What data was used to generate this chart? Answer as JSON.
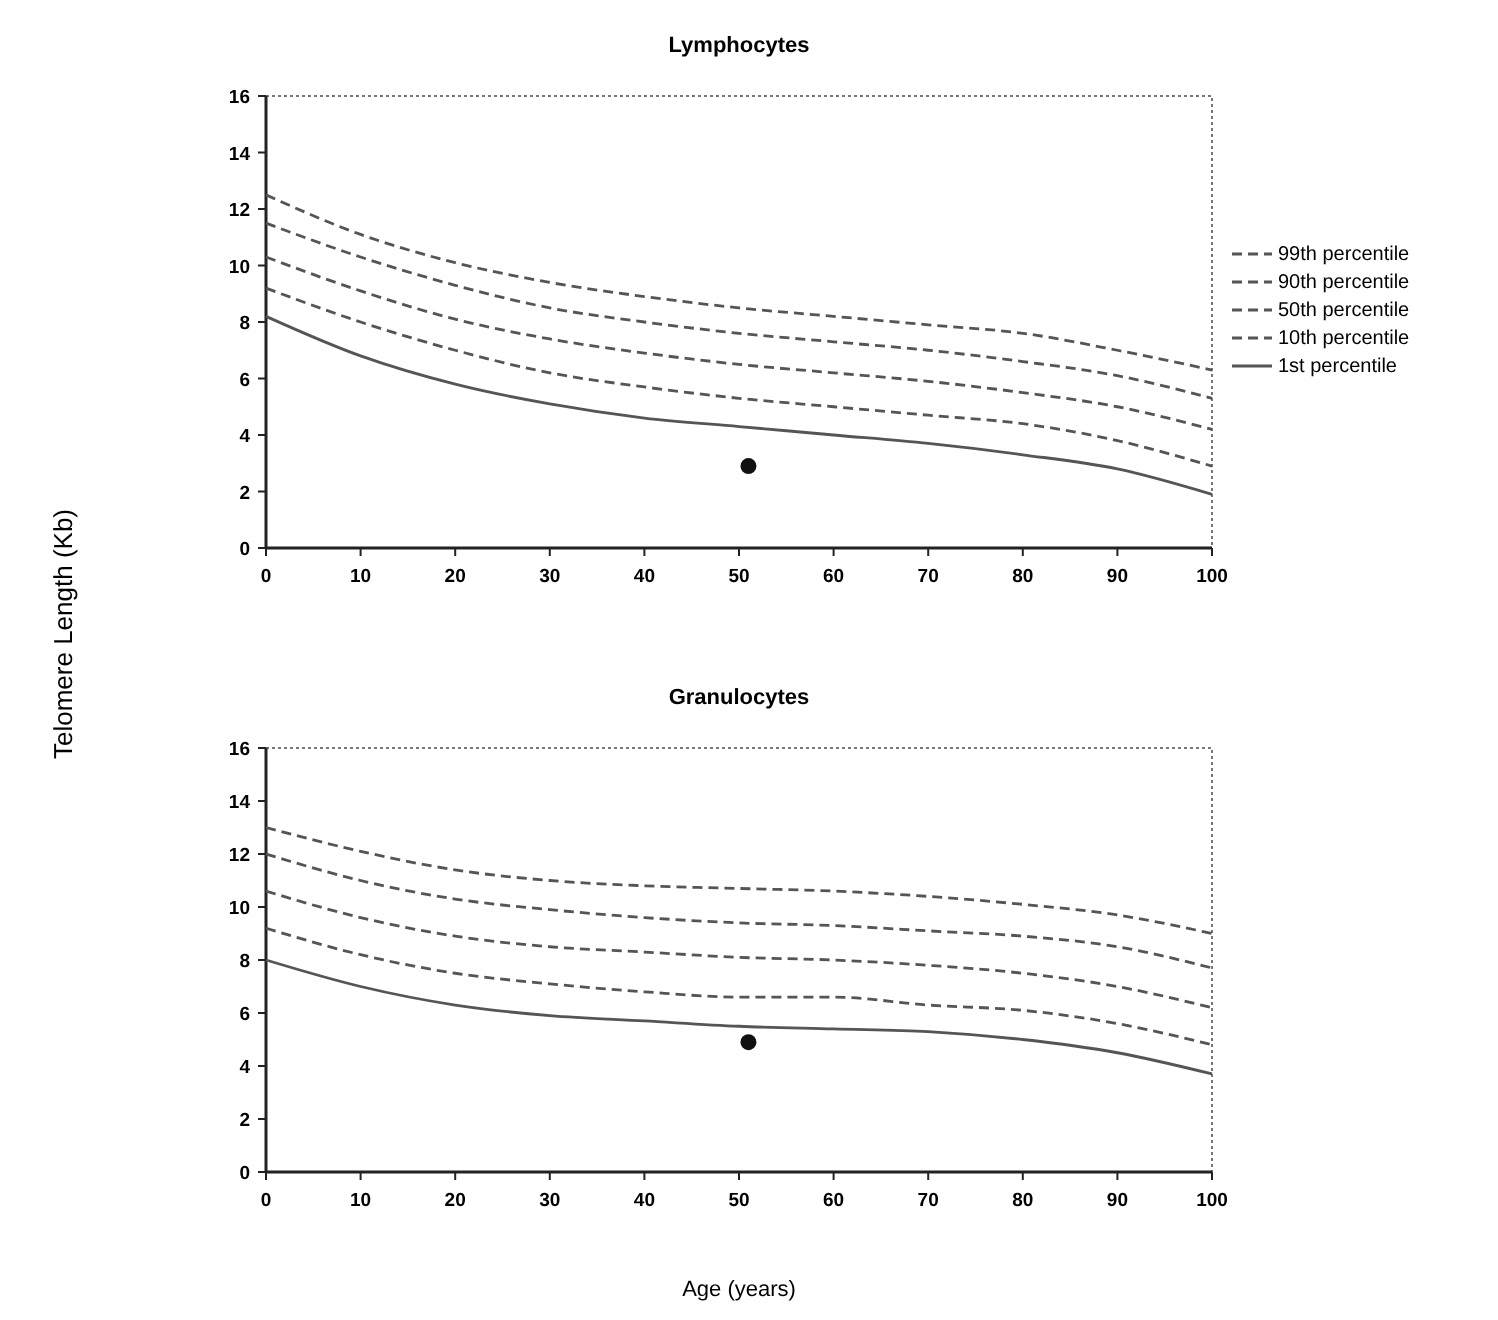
{
  "chart_data": [
    {
      "type": "line",
      "title": "Lymphocytes",
      "ylabel": "Telomere Length (Kb)",
      "x": [
        0,
        10,
        20,
        30,
        40,
        50,
        60,
        70,
        80,
        90,
        100
      ],
      "xlim": [
        0,
        100
      ],
      "xticks": [
        0,
        10,
        20,
        30,
        40,
        50,
        60,
        70,
        80,
        90,
        100
      ],
      "ylim": [
        0,
        16
      ],
      "yticks": [
        0,
        2,
        4,
        6,
        8,
        10,
        12,
        14,
        16
      ],
      "grid": false,
      "legend": "right",
      "series": [
        {
          "name": "99th percentile",
          "color": "#555555",
          "line_style": "dashed",
          "values": [
            12.5,
            11.1,
            10.1,
            9.4,
            8.9,
            8.5,
            8.2,
            7.9,
            7.6,
            7.0,
            6.3
          ]
        },
        {
          "name": "90th percentile",
          "color": "#555555",
          "line_style": "dashed",
          "values": [
            11.5,
            10.3,
            9.3,
            8.5,
            8.0,
            7.6,
            7.3,
            7.0,
            6.6,
            6.1,
            5.3
          ]
        },
        {
          "name": "50th percentile",
          "color": "#555555",
          "line_style": "dashed",
          "values": [
            10.3,
            9.1,
            8.1,
            7.4,
            6.9,
            6.5,
            6.2,
            5.9,
            5.5,
            5.0,
            4.2
          ]
        },
        {
          "name": "10th percentile",
          "color": "#555555",
          "line_style": "dashed",
          "values": [
            9.2,
            8.0,
            7.0,
            6.2,
            5.7,
            5.3,
            5.0,
            4.7,
            4.4,
            3.8,
            2.9
          ]
        },
        {
          "name": "1st percentile",
          "color": "#555555",
          "line_style": "solid",
          "values": [
            8.2,
            6.8,
            5.8,
            5.1,
            4.6,
            4.3,
            4.0,
            3.7,
            3.3,
            2.8,
            1.9
          ]
        },
        {
          "type": "scatter",
          "color": "#111111",
          "marker": "circle",
          "x": [
            51
          ],
          "values": [
            2.9
          ]
        }
      ]
    },
    {
      "type": "line",
      "title": "Granulocytes",
      "xlabel": "Age (years)",
      "x": [
        0,
        10,
        20,
        30,
        40,
        50,
        60,
        70,
        80,
        90,
        100
      ],
      "xlim": [
        0,
        100
      ],
      "xticks": [
        0,
        10,
        20,
        30,
        40,
        50,
        60,
        70,
        80,
        90,
        100
      ],
      "ylim": [
        0,
        16
      ],
      "yticks": [
        0,
        2,
        4,
        6,
        8,
        10,
        12,
        14,
        16
      ],
      "grid": false,
      "legend": false,
      "series": [
        {
          "color": "#555555",
          "line_style": "dashed",
          "values": [
            13.0,
            12.1,
            11.4,
            11.0,
            10.8,
            10.7,
            10.6,
            10.4,
            10.1,
            9.7,
            9.0
          ]
        },
        {
          "color": "#555555",
          "line_style": "dashed",
          "values": [
            12.0,
            11.0,
            10.3,
            9.9,
            9.6,
            9.4,
            9.3,
            9.1,
            8.9,
            8.5,
            7.7
          ]
        },
        {
          "color": "#555555",
          "line_style": "dashed",
          "values": [
            10.6,
            9.6,
            8.9,
            8.5,
            8.3,
            8.1,
            8.0,
            7.8,
            7.5,
            7.0,
            6.2
          ]
        },
        {
          "color": "#555555",
          "line_style": "dashed",
          "values": [
            9.2,
            8.2,
            7.5,
            7.1,
            6.8,
            6.6,
            6.6,
            6.3,
            6.1,
            5.6,
            4.8
          ]
        },
        {
          "color": "#555555",
          "line_style": "solid",
          "values": [
            8.0,
            7.0,
            6.3,
            5.9,
            5.7,
            5.5,
            5.4,
            5.3,
            5.0,
            4.5,
            3.7
          ]
        },
        {
          "type": "scatter",
          "color": "#111111",
          "marker": "circle",
          "x": [
            51
          ],
          "values": [
            4.9
          ]
        }
      ]
    }
  ]
}
